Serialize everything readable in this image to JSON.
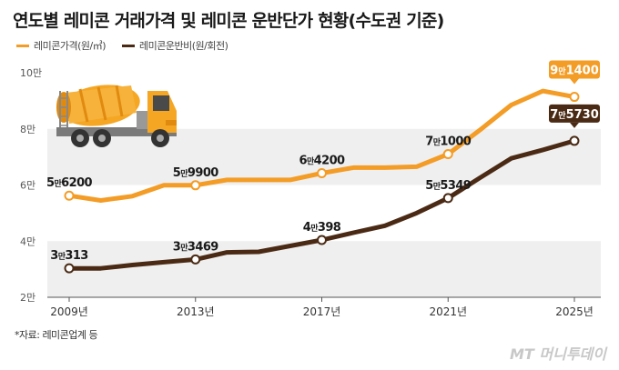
{
  "title": "연도별 레미콘 거래가격 및 레미콘 운반단가 현황(수도권 기준)",
  "source": "*자료: 레미콘업계 등",
  "credit": "MT 머니투데이",
  "chart_data": {
    "type": "line",
    "x": [
      2009,
      2010,
      2011,
      2012,
      2013,
      2014,
      2015,
      2016,
      2017,
      2018,
      2019,
      2020,
      2021,
      2022,
      2023,
      2024,
      2025
    ],
    "xticks": [
      2009,
      2013,
      2017,
      2021,
      2025
    ],
    "xtick_labels": [
      "2009년",
      "2013년",
      "2017년",
      "2021년",
      "2025년"
    ],
    "yticks": [
      20000,
      40000,
      60000,
      80000,
      100000
    ],
    "ytick_labels": [
      "2만",
      "4만",
      "6만",
      "8만",
      "10만"
    ],
    "ylim": [
      20000,
      100000
    ],
    "grid_bands": true,
    "legend_position": "top-left",
    "series": [
      {
        "name": "레미콘가격(원/㎥)",
        "color": "#f39c26",
        "values": [
          56200,
          54500,
          56000,
          59900,
          59900,
          61800,
          61800,
          61800,
          64200,
          66200,
          66200,
          66500,
          71000,
          79500,
          88500,
          93500,
          91400
        ],
        "labels": {
          "0": "5만6200",
          "4": "5만9900",
          "8": "6만4200",
          "12": "7만1000",
          "16": "9만1400"
        },
        "highlight_index": 16
      },
      {
        "name": "레미콘운반비(원/회전)",
        "color": "#4a2a14",
        "values": [
          30313,
          30313,
          31500,
          32500,
          33469,
          36000,
          36200,
          38300,
          40398,
          43000,
          45500,
          50000,
          55349,
          62500,
          69500,
          72500,
          75730
        ],
        "labels": {
          "0": "3만313",
          "4": "3만3469",
          "8": "4만398",
          "12": "5만5349",
          "16": "7만5730"
        },
        "highlight_index": 16
      }
    ]
  }
}
